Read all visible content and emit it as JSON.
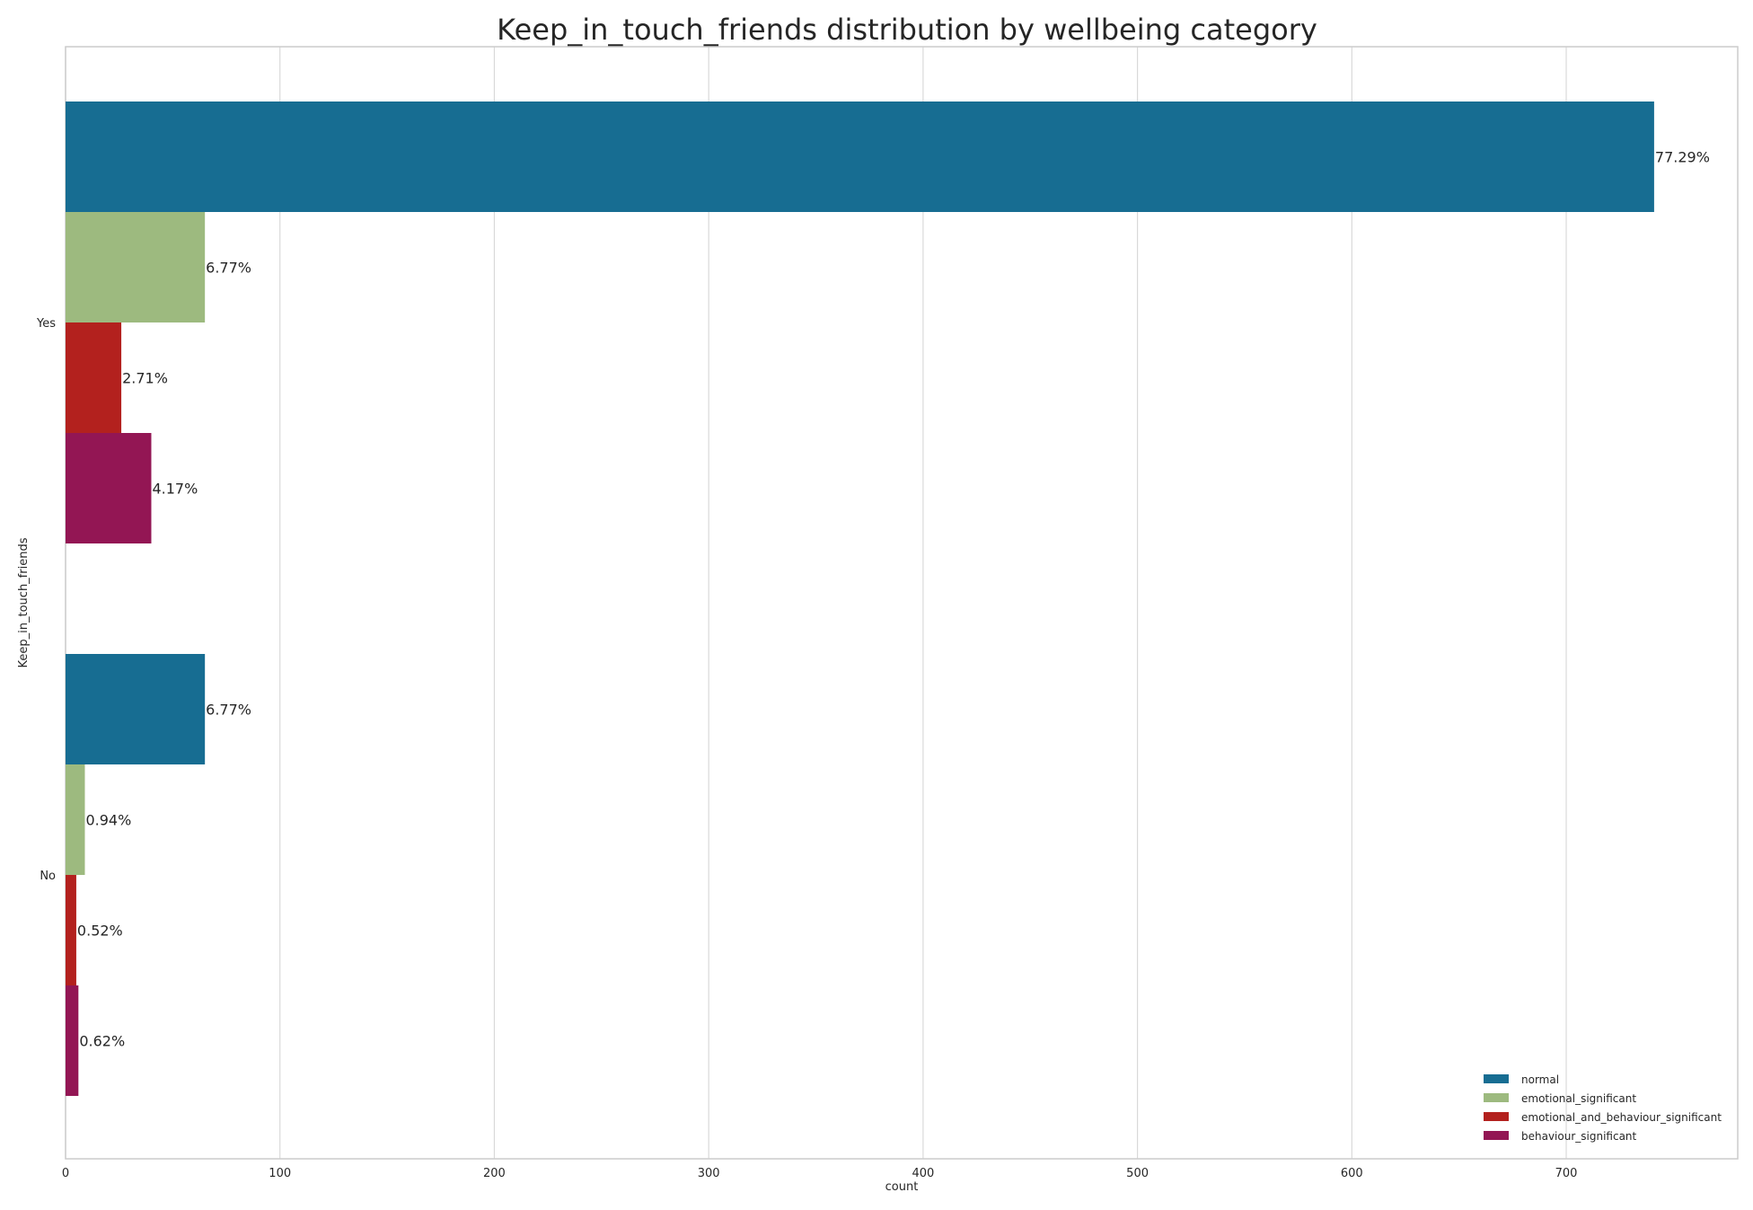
{
  "chart_data": {
    "type": "bar",
    "orientation": "horizontal",
    "title": "Keep_in_touch_friends distribution by wellbeing category",
    "xlabel": "count",
    "ylabel": "Keep_in_touch_friends",
    "categories": [
      "Yes",
      "No"
    ],
    "xlim": [
      0,
      780
    ],
    "xticks": [
      0,
      100,
      200,
      300,
      400,
      500,
      600,
      700
    ],
    "grid": true,
    "legend_position": "lower-right",
    "series": [
      {
        "name": "normal",
        "color": "#176d92",
        "values": [
          741,
          65
        ],
        "labels": [
          "77.29%",
          "6.77%"
        ]
      },
      {
        "name": "emotional_significant",
        "color": "#9dba7f",
        "values": [
          65,
          9
        ],
        "labels": [
          "6.77%",
          "0.94%"
        ]
      },
      {
        "name": "emotional_and_behaviour_significant",
        "color": "#b3211e",
        "values": [
          26,
          5
        ],
        "labels": [
          "2.71%",
          "0.52%"
        ]
      },
      {
        "name": "behaviour_significant",
        "color": "#931654",
        "values": [
          40,
          6
        ],
        "labels": [
          "4.17%",
          "0.62%"
        ]
      }
    ]
  }
}
